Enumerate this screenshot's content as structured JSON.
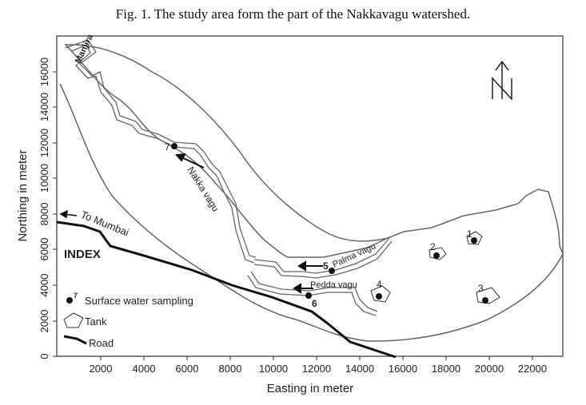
{
  "caption": "Fig. 1. The study area form the part of the Nakkavagu watershed.",
  "axes": {
    "xlabel": "Easting in meter",
    "ylabel": "Northing in meter",
    "xticks": [
      "2000",
      "4000",
      "6000",
      "8000",
      "10000",
      "12000",
      "14000",
      "16000",
      "18000",
      "20000",
      "22000"
    ],
    "yticks": [
      "0",
      "2000",
      "4000",
      "6000",
      "8000",
      "10000",
      "12000",
      "14000",
      "16000"
    ]
  },
  "labels": {
    "manjira": "Manjira",
    "nakka_vagu": "Nakka vagu",
    "palma_vagu": "Palma vagu",
    "pedda_vagu": "Pedda vagu",
    "to_mumbai": "To Mumbai",
    "index": "INDEX",
    "north": "N"
  },
  "sites": {
    "s1": "1",
    "s2": "2",
    "s3": "3",
    "s4": "4",
    "s5": "5",
    "s6": "6",
    "s7": "7"
  },
  "legend": {
    "sampling_num": "7",
    "sampling": "Surface water sampling",
    "tank": "Tank",
    "road": "Road"
  }
}
